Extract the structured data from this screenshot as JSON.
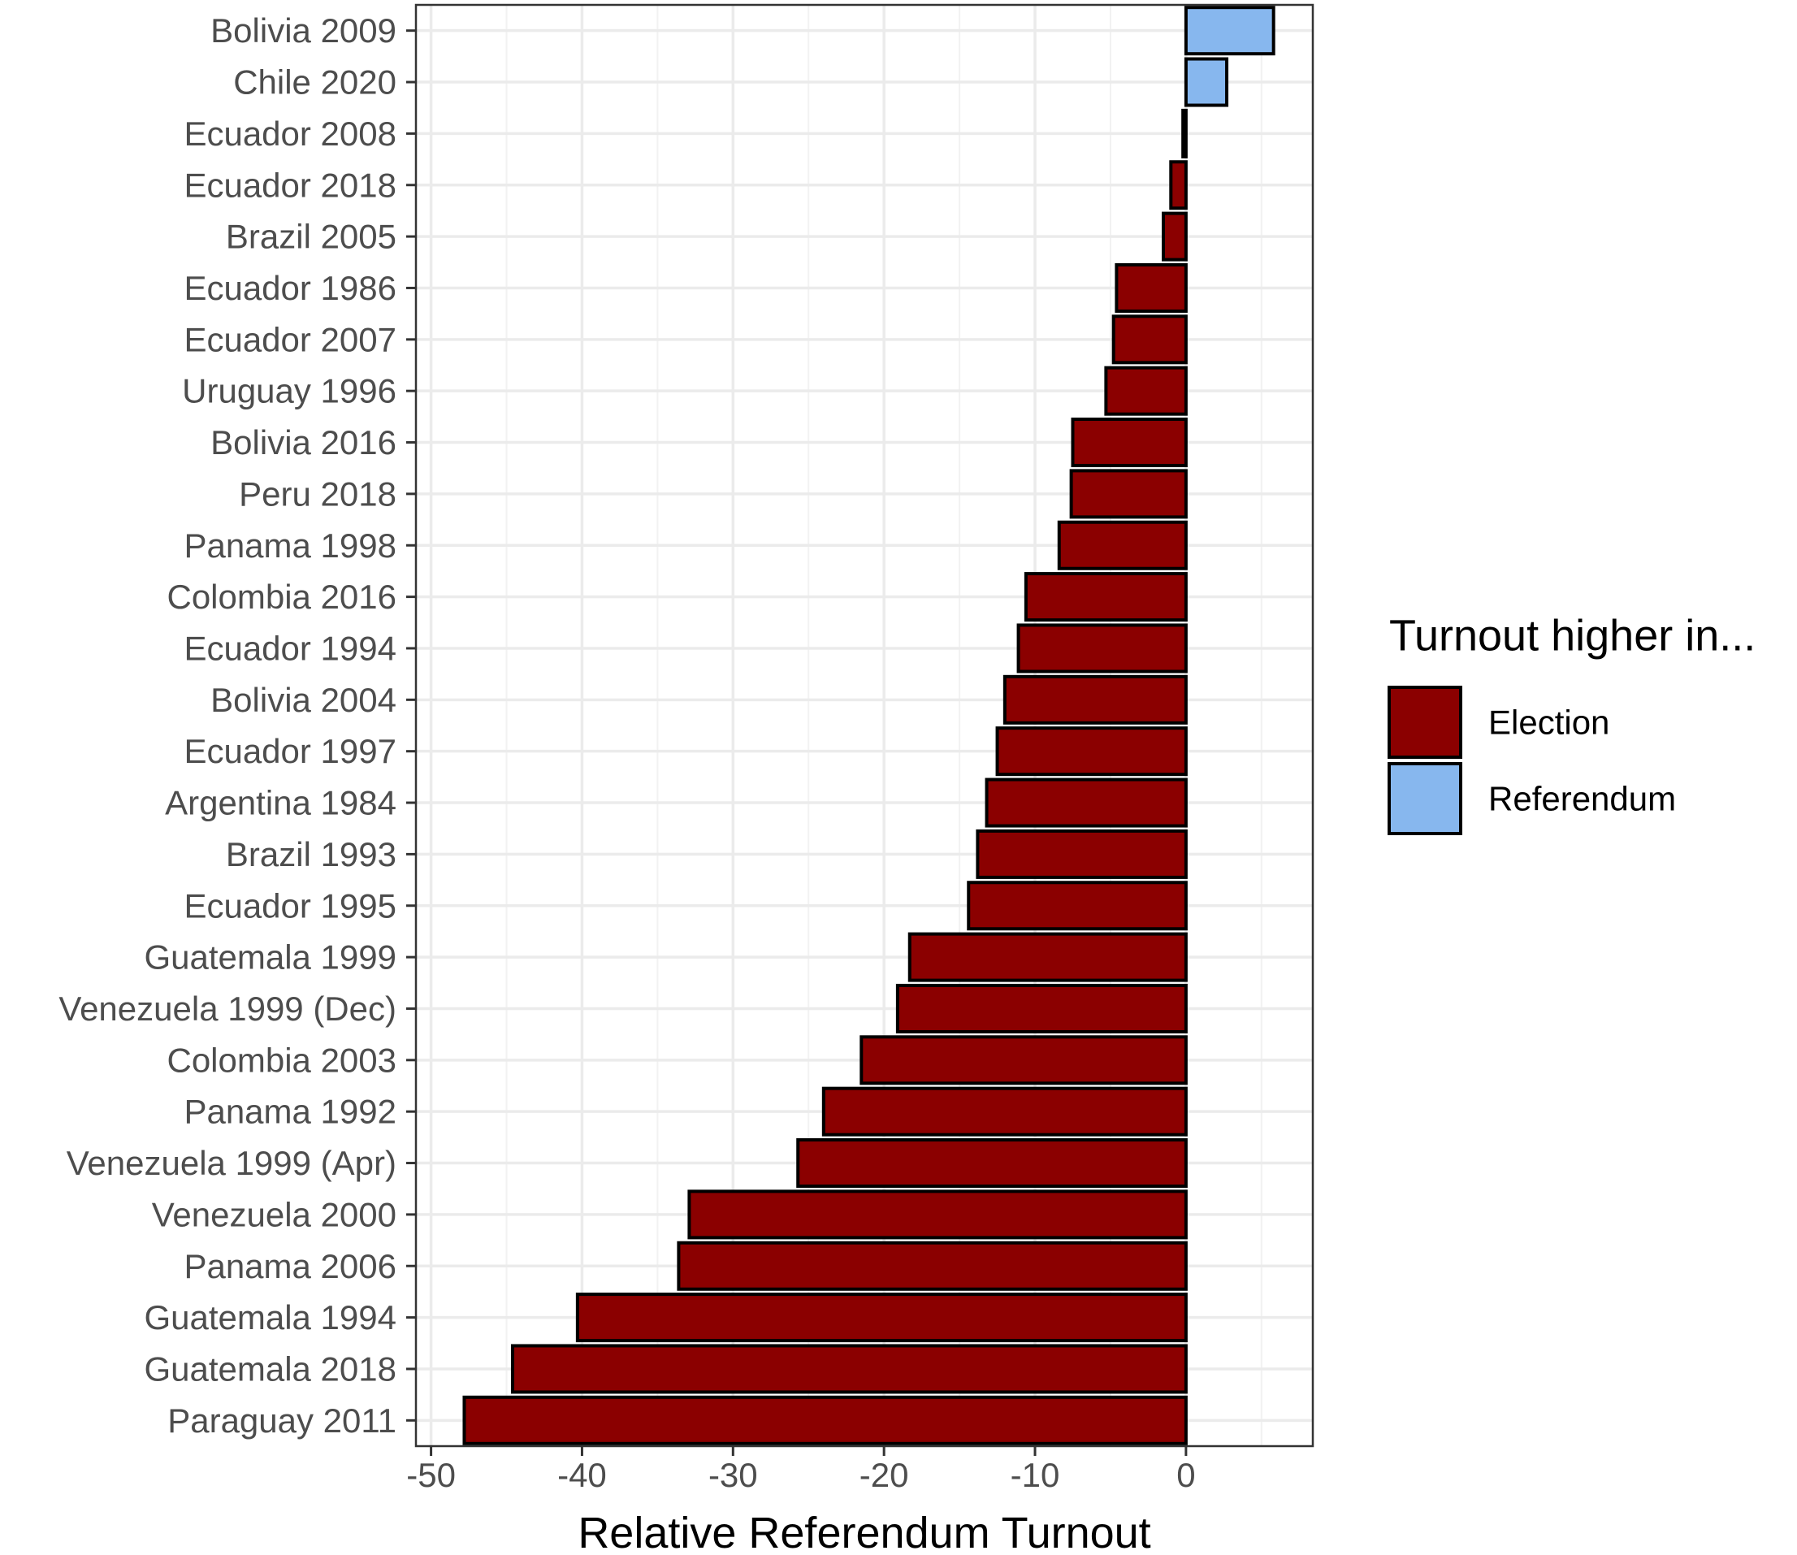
{
  "chart_data": {
    "type": "bar",
    "orientation": "horizontal",
    "title": "",
    "xlabel": "Relative Referendum Turnout",
    "ylabel": "",
    "xlim": [
      -51,
      8.4
    ],
    "xticks": [
      -50,
      -40,
      -30,
      -20,
      -10,
      0
    ],
    "grid": true,
    "categories": [
      "Bolivia 2009",
      "Chile 2020",
      "Ecuador 2008",
      "Ecuador 2018",
      "Brazil 2005",
      "Ecuador 1986",
      "Ecuador 2007",
      "Uruguay 1996",
      "Bolivia 2016",
      "Peru 2018",
      "Panama 1998",
      "Colombia 2016",
      "Ecuador 1994",
      "Bolivia 2004",
      "Ecuador 1997",
      "Argentina 1984",
      "Brazil 1993",
      "Ecuador 1995",
      "Guatemala 1999",
      "Venezuela 1999 (Dec)",
      "Colombia 2003",
      "Panama 1992",
      "Venezuela 1999 (Apr)",
      "Venezuela 2000",
      "Panama 2006",
      "Guatemala 1994",
      "Guatemala 2018",
      "Paraguay 2011"
    ],
    "values": [
      5.8,
      2.7,
      -0.2,
      -1.0,
      -1.5,
      -4.6,
      -4.8,
      -5.3,
      -7.5,
      -7.6,
      -8.4,
      -10.6,
      -11.1,
      -12.0,
      -12.5,
      -13.2,
      -13.8,
      -14.4,
      -18.3,
      -19.1,
      -21.5,
      -24.0,
      -25.7,
      -32.9,
      -33.6,
      -40.3,
      -44.6,
      -47.8
    ],
    "groups": [
      "Referendum",
      "Referendum",
      "Election",
      "Election",
      "Election",
      "Election",
      "Election",
      "Election",
      "Election",
      "Election",
      "Election",
      "Election",
      "Election",
      "Election",
      "Election",
      "Election",
      "Election",
      "Election",
      "Election",
      "Election",
      "Election",
      "Election",
      "Election",
      "Election",
      "Election",
      "Election",
      "Election",
      "Election"
    ],
    "legend": {
      "title": "Turnout higher in...",
      "position": "right",
      "entries": [
        {
          "name": "Election",
          "color": "#8b0000"
        },
        {
          "name": "Referendum",
          "color": "#87b7ee"
        }
      ]
    }
  }
}
